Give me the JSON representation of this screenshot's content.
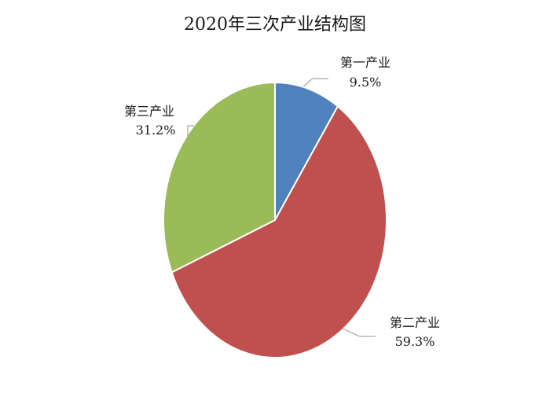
{
  "chart_data": {
    "type": "pie",
    "title": "2020年三次产业结构图",
    "slices": [
      {
        "name": "第一产业",
        "value": 9.5,
        "label": "9.5%",
        "color": "#4f81bd"
      },
      {
        "name": "第二产业",
        "value": 59.3,
        "label": "59.3%",
        "color": "#c0504d"
      },
      {
        "name": "第三产业",
        "value": 31.2,
        "label": "31.2%",
        "color": "#9bbb59"
      }
    ],
    "start_angle": "12 o'clock",
    "direction": "clockwise",
    "legend": "none"
  }
}
